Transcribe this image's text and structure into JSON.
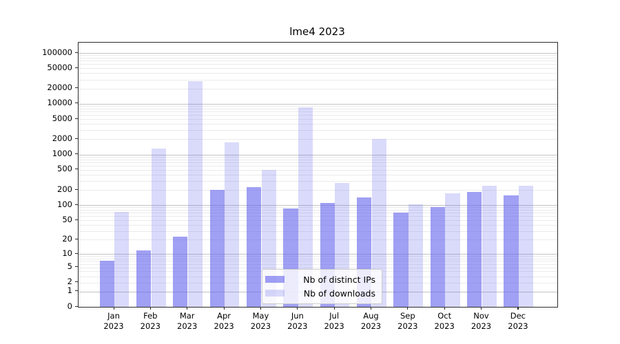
{
  "figure": {
    "background": "#ffffff"
  },
  "chart_data": {
    "type": "bar",
    "title": "lme4 2023",
    "categories": [
      "Jan 2023",
      "Feb 2023",
      "Mar 2023",
      "Apr 2023",
      "May 2023",
      "Jun 2023",
      "Jul 2023",
      "Aug 2023",
      "Sep 2023",
      "Oct 2023",
      "Nov 2023",
      "Dec 2023"
    ],
    "series": [
      {
        "name": "Nb of distinct IPs",
        "color": "rgba(102,102,238,0.62)",
        "values": [
          7,
          12,
          23,
          200,
          230,
          85,
          110,
          140,
          72,
          90,
          185,
          155
        ]
      },
      {
        "name": "Nb of downloads",
        "color": "rgba(102,102,238,0.24)",
        "values": [
          73,
          1320,
          27500,
          1750,
          500,
          8500,
          270,
          2000,
          105,
          170,
          245,
          245
        ]
      }
    ],
    "xlabel": "",
    "ylabel": "",
    "yscale": "log1p",
    "yticks": [
      0,
      1,
      2,
      5,
      10,
      20,
      50,
      100,
      200,
      500,
      1000,
      2000,
      5000,
      10000,
      20000,
      50000,
      100000
    ],
    "ylim": [
      0,
      160000
    ],
    "grid": "horizontal major+minor",
    "legend_position": "lower center",
    "colors": {
      "major_grid": "#c2c2c2",
      "minor_grid": "#ebebeb",
      "spine": "#2b2b2b",
      "text": "#000000"
    }
  }
}
